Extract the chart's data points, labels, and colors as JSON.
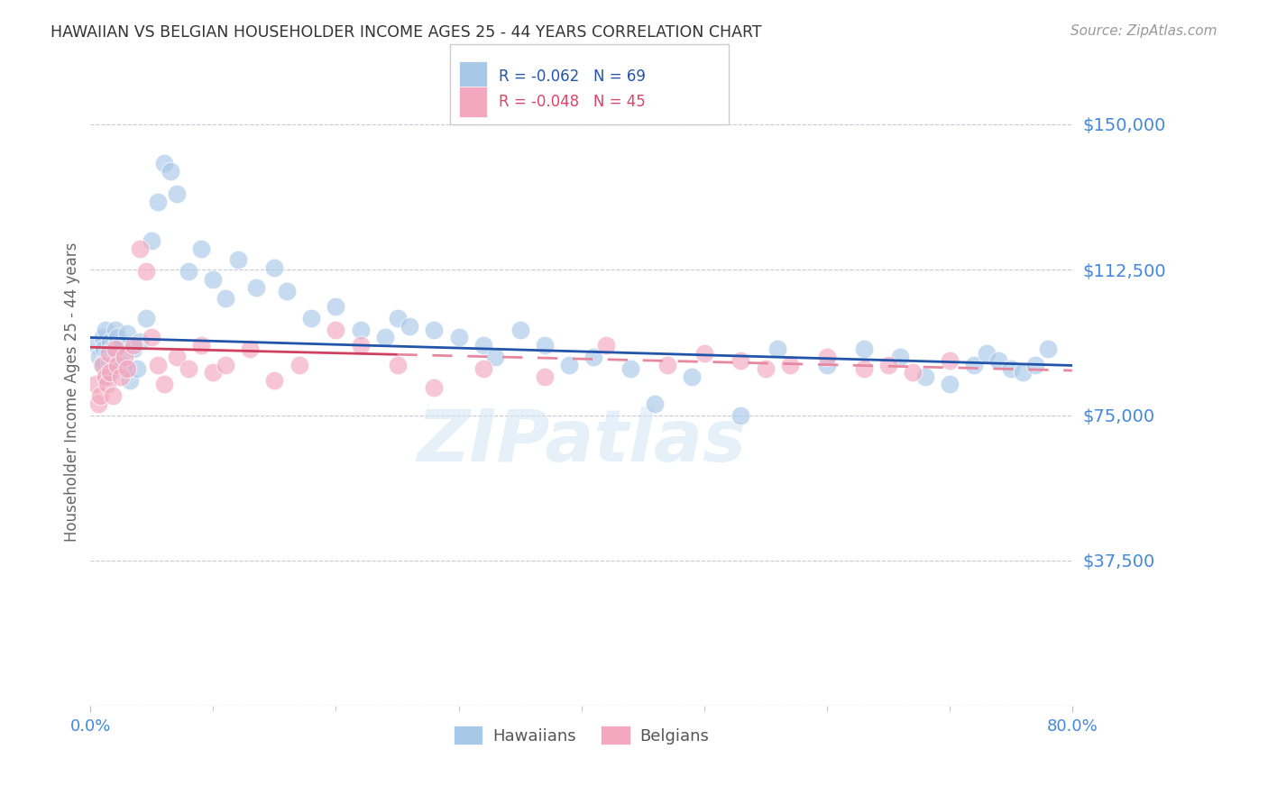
{
  "title": "HAWAIIAN VS BELGIAN HOUSEHOLDER INCOME AGES 25 - 44 YEARS CORRELATION CHART",
  "source": "Source: ZipAtlas.com",
  "ylabel": "Householder Income Ages 25 - 44 years",
  "ytick_vals": [
    37500,
    75000,
    112500,
    150000
  ],
  "ytick_labels": [
    "$37,500",
    "$75,000",
    "$112,500",
    "$150,000"
  ],
  "xmin": 0.0,
  "xmax": 80.0,
  "ymin": 0,
  "ymax": 162000,
  "hawaiian_color": "#a8c8e8",
  "belgian_color": "#f4a8c0",
  "hawaiian_line_color": "#2255aa",
  "belgian_line_solid_color": "#d04060",
  "belgian_line_dash_color": "#e888a0",
  "background_color": "#ffffff",
  "grid_color": "#c8c8d8",
  "title_color": "#333333",
  "axis_label_color": "#4488dd",
  "watermark": "ZIPatlas",
  "legend_r1": "R = -0.062",
  "legend_n1": "N = 69",
  "legend_r2": "R = -0.048",
  "legend_n2": "N = 45",
  "hawaiians_x": [
    0.5,
    0.7,
    0.9,
    1.0,
    1.1,
    1.2,
    1.3,
    1.4,
    1.5,
    1.6,
    1.7,
    1.8,
    1.9,
    2.0,
    2.1,
    2.2,
    2.3,
    2.5,
    2.7,
    3.0,
    3.2,
    3.5,
    3.8,
    4.0,
    4.5,
    5.0,
    5.5,
    6.0,
    6.5,
    7.0,
    8.0,
    9.0,
    10.0,
    11.0,
    12.0,
    13.5,
    15.0,
    16.0,
    18.0,
    20.0,
    22.0,
    24.0,
    25.0,
    26.0,
    28.0,
    30.0,
    32.0,
    33.0,
    35.0,
    37.0,
    39.0,
    41.0,
    44.0,
    46.0,
    49.0,
    53.0,
    56.0,
    60.0,
    63.0,
    66.0,
    68.0,
    70.0,
    72.0,
    73.0,
    74.0,
    75.0,
    76.0,
    77.0,
    78.0
  ],
  "hawaiians_y": [
    93000,
    90000,
    88000,
    95000,
    92000,
    97000,
    85000,
    91000,
    89000,
    94000,
    86000,
    92000,
    88000,
    97000,
    91000,
    95000,
    90000,
    93000,
    88000,
    96000,
    84000,
    92000,
    87000,
    94000,
    100000,
    120000,
    130000,
    140000,
    138000,
    132000,
    112000,
    118000,
    110000,
    105000,
    115000,
    108000,
    113000,
    107000,
    100000,
    103000,
    97000,
    95000,
    100000,
    98000,
    97000,
    95000,
    93000,
    90000,
    97000,
    93000,
    88000,
    90000,
    87000,
    78000,
    85000,
    75000,
    92000,
    88000,
    92000,
    90000,
    85000,
    83000,
    88000,
    91000,
    89000,
    87000,
    86000,
    88000,
    92000
  ],
  "belgians_x": [
    0.4,
    0.6,
    0.8,
    1.0,
    1.2,
    1.4,
    1.5,
    1.6,
    1.8,
    2.0,
    2.2,
    2.5,
    2.8,
    3.0,
    3.5,
    4.0,
    4.5,
    5.0,
    5.5,
    6.0,
    7.0,
    8.0,
    9.0,
    10.0,
    11.0,
    13.0,
    15.0,
    17.0,
    20.0,
    22.0,
    25.0,
    28.0,
    32.0,
    37.0,
    42.0,
    47.0,
    50.0,
    53.0,
    55.0,
    57.0,
    60.0,
    63.0,
    65.0,
    67.0,
    70.0
  ],
  "belgians_y": [
    83000,
    78000,
    80000,
    88000,
    85000,
    83000,
    91000,
    86000,
    80000,
    92000,
    88000,
    85000,
    90000,
    87000,
    93000,
    118000,
    112000,
    95000,
    88000,
    83000,
    90000,
    87000,
    93000,
    86000,
    88000,
    92000,
    84000,
    88000,
    97000,
    93000,
    88000,
    82000,
    87000,
    85000,
    93000,
    88000,
    91000,
    89000,
    87000,
    88000,
    90000,
    87000,
    88000,
    86000,
    89000
  ]
}
